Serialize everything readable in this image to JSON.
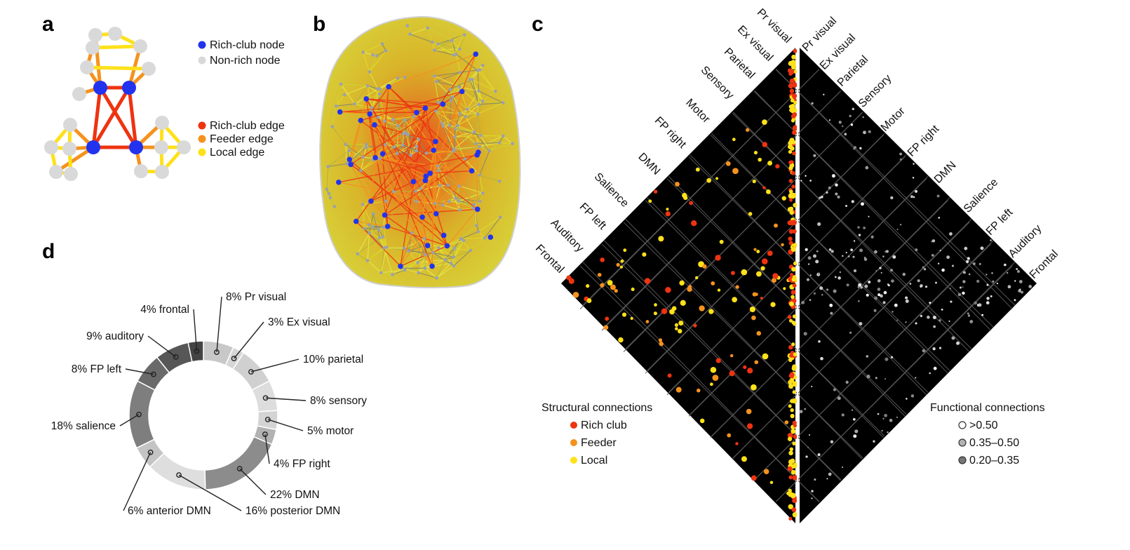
{
  "panels": {
    "a": "a",
    "b": "b",
    "c": "c",
    "d": "d"
  },
  "colors": {
    "rich_node": "#2233ee",
    "nonrich_node": "#d9d9d9",
    "rich_edge": "#ee3311",
    "feeder_edge": "#f5921e",
    "local_edge": "#ffe11a"
  },
  "panel_a": {
    "legend_nodes": [
      "Rich-club node",
      "Non-rich node"
    ],
    "legend_edges": [
      "Rich-club edge",
      "Feeder edge",
      "Local edge"
    ]
  },
  "panel_c": {
    "left_labels": [
      "Pr visual",
      "Ex visual",
      "Parietal",
      "Sensory",
      "Motor",
      "FP right",
      "DMN",
      "Salience",
      "FP left",
      "Auditory",
      "Frontal"
    ],
    "right_labels": [
      "Pr visual",
      "Ex visual",
      "Parietal",
      "Sensory",
      "Motor",
      "FP right",
      "DMN",
      "Salience",
      "FP left",
      "Auditory",
      "Frontal"
    ],
    "structural_title": "Structural connections",
    "structural_items": [
      "Rich club",
      "Feeder",
      "Local"
    ],
    "functional_title": "Functional connections",
    "functional_items": [
      ">0.50",
      "0.35–0.50",
      "0.20–0.35"
    ],
    "functional_colors": [
      "#ffffff",
      "#b3b3b3",
      "#777777"
    ]
  },
  "chart_data": {
    "type": "pie",
    "categories": [
      "Pr visual",
      "Ex visual",
      "parietal",
      "sensory",
      "motor",
      "FP right",
      "DMN",
      "posterior DMN",
      "anterior DMN",
      "salience",
      "FP left",
      "auditory",
      "frontal"
    ],
    "values": [
      8,
      3,
      10,
      8,
      5,
      4,
      22,
      16,
      6,
      18,
      8,
      9,
      4
    ],
    "labels": [
      "8% Pr visual",
      "3% Ex visual",
      "10% parietal",
      "8% sensory",
      "5% motor",
      "4% FP right",
      "22% DMN",
      "16% posterior DMN",
      "6% anterior DMN",
      "18% salience",
      "8% FP left",
      "9% auditory",
      "4% frontal"
    ],
    "colors": [
      "#c8c8c8",
      "#d6d6d6",
      "#d0d0d0",
      "#dddddd",
      "#d4d4d4",
      "#b2b2b2",
      "#8c8c8c",
      "#dedede",
      "#c4c4c4",
      "#7e7e7e",
      "#6a6a6a",
      "#575757",
      "#444444"
    ]
  }
}
